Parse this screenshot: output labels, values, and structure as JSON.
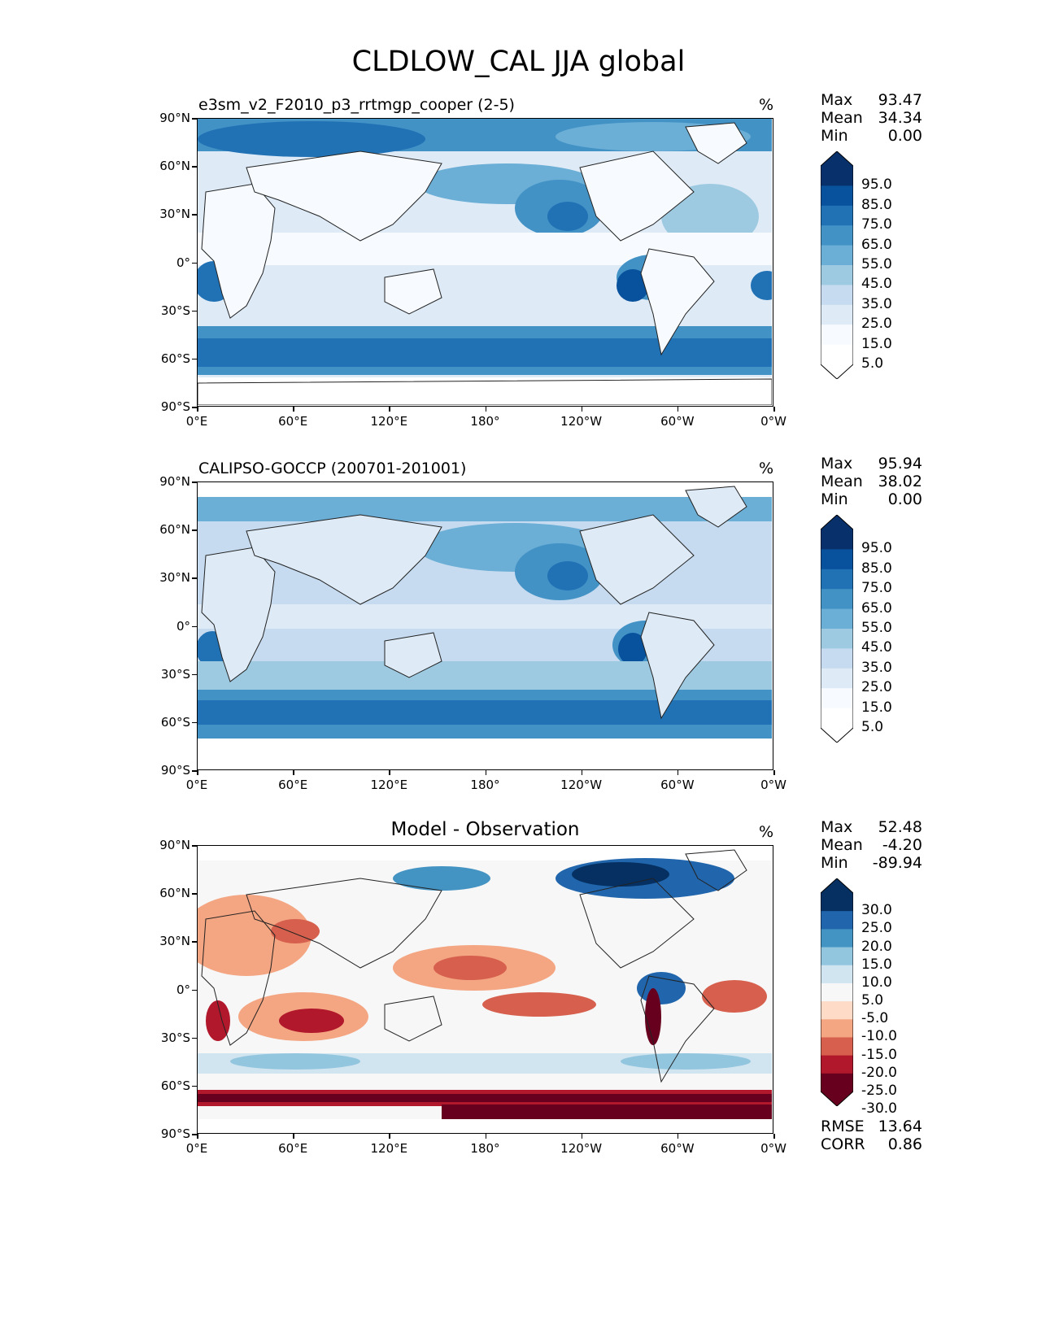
{
  "title": "CLDLOW_CAL JJA global",
  "units": "%",
  "lat_ticks": [
    "90°N",
    "60°N",
    "30°N",
    "0°",
    "30°S",
    "60°S",
    "90°S"
  ],
  "lon_ticks": [
    "0°E",
    "60°E",
    "120°E",
    "180°",
    "120°W",
    "60°W",
    "0°W"
  ],
  "panels": [
    {
      "id": "model",
      "title": "e3sm_v2_F2010_p3_rrtmgp_cooper (2-5)",
      "units": "%",
      "stats": [
        {
          "label": "Max",
          "value": "93.47"
        },
        {
          "label": "Mean",
          "value": "34.34"
        },
        {
          "label": "Min",
          "value": "0.00"
        }
      ],
      "colorbar_labels": [
        "95.0",
        "85.0",
        "75.0",
        "65.0",
        "55.0",
        "45.0",
        "35.0",
        "25.0",
        "15.0",
        "5.0"
      ],
      "colors": [
        "#08306b",
        "#08519c",
        "#2171b5",
        "#4292c6",
        "#6baed6",
        "#9ecae1",
        "#c6dbef",
        "#deebf7",
        "#f7fbff",
        "#ffffff"
      ]
    },
    {
      "id": "obs",
      "title": "CALIPSO-GOCCP (200701-201001)",
      "units": "%",
      "stats": [
        {
          "label": "Max",
          "value": "95.94"
        },
        {
          "label": "Mean",
          "value": "38.02"
        },
        {
          "label": "Min",
          "value": "0.00"
        }
      ],
      "colorbar_labels": [
        "95.0",
        "85.0",
        "75.0",
        "65.0",
        "55.0",
        "45.0",
        "35.0",
        "25.0",
        "15.0",
        "5.0"
      ],
      "colors": [
        "#08306b",
        "#08519c",
        "#2171b5",
        "#4292c6",
        "#6baed6",
        "#9ecae1",
        "#c6dbef",
        "#deebf7",
        "#f7fbff",
        "#ffffff"
      ]
    },
    {
      "id": "diff",
      "title": "Model - Observation",
      "units": "%",
      "stats": [
        {
          "label": "Max",
          "value": "52.48"
        },
        {
          "label": "Mean",
          "value": "-4.20"
        },
        {
          "label": "Min",
          "value": "-89.94"
        }
      ],
      "colorbar_labels": [
        "30.0",
        "25.0",
        "20.0",
        "15.0",
        "10.0",
        "5.0",
        "-5.0",
        "-10.0",
        "-15.0",
        "-20.0",
        "-25.0",
        "-30.0"
      ],
      "colors": [
        "#053061",
        "#2166ac",
        "#4393c3",
        "#92c5de",
        "#d1e5f0",
        "#f7f7f7",
        "#fddbc7",
        "#f4a582",
        "#d6604d",
        "#b2182b",
        "#67001f"
      ],
      "extra_stats": [
        {
          "label": "RMSE",
          "value": "13.64"
        },
        {
          "label": "CORR",
          "value": "0.86"
        }
      ]
    }
  ]
}
